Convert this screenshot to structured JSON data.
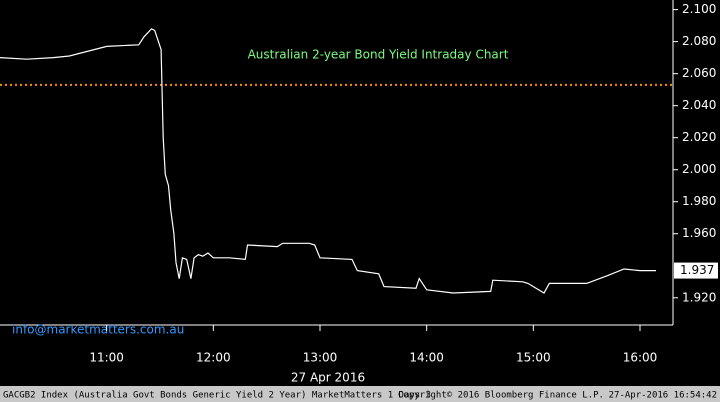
{
  "chart_data": {
    "type": "line",
    "title": "Australian 2-year Bond Yield Intraday Chart",
    "annotation": "info@marketmatters.com.au",
    "xlabel": "27 Apr 2016",
    "footer_left": "GACGB2 Index (Australia Govt Bonds Generic Yield 2 Year) MarketMatters 1 Days 3",
    "footer_center": "Copyright© 2016 Bloomberg Finance L.P.",
    "footer_right": "27-Apr-2016 16:54:42",
    "x": [
      10.0,
      10.25,
      10.5,
      10.65,
      11.0,
      11.3,
      11.35,
      11.42,
      11.45,
      11.51,
      11.53,
      11.55,
      11.58,
      11.6,
      11.63,
      11.65,
      11.68,
      11.71,
      11.75,
      11.79,
      11.82,
      11.86,
      11.9,
      11.95,
      12.0,
      12.15,
      12.3,
      12.32,
      12.6,
      12.65,
      12.9,
      12.95,
      13.0,
      13.3,
      13.35,
      13.55,
      13.6,
      13.9,
      13.93,
      14.0,
      14.25,
      14.6,
      14.62,
      14.9,
      14.95,
      15.1,
      15.15,
      15.5,
      15.7,
      15.85,
      16.0,
      16.15
    ],
    "values": [
      2.07,
      2.069,
      2.07,
      2.071,
      2.077,
      2.078,
      2.083,
      2.088,
      2.087,
      2.075,
      2.02,
      1.997,
      1.99,
      1.975,
      1.96,
      1.942,
      1.932,
      1.945,
      1.944,
      1.932,
      1.945,
      1.947,
      1.946,
      1.948,
      1.945,
      1.945,
      1.944,
      1.953,
      1.952,
      1.954,
      1.954,
      1.953,
      1.945,
      1.944,
      1.937,
      1.935,
      1.927,
      1.926,
      1.932,
      1.925,
      1.923,
      1.924,
      1.931,
      1.93,
      1.929,
      1.923,
      1.929,
      1.929,
      1.934,
      1.938,
      1.937,
      1.937
    ],
    "color": "#ffffff",
    "last_value_label": "1.937",
    "reference_line": 2.053,
    "reference_color": "#ff8c00",
    "xlim": [
      10.0,
      16.3
    ],
    "xticks": [
      {
        "value": 11,
        "label": "11:00"
      },
      {
        "value": 12,
        "label": "12:00"
      },
      {
        "value": 13,
        "label": "13:00"
      },
      {
        "value": 14,
        "label": "14:00"
      },
      {
        "value": 15,
        "label": "15:00"
      },
      {
        "value": 16,
        "label": "16:00"
      }
    ],
    "ylim": [
      1.903,
      2.106
    ],
    "yticks": [
      {
        "value": 1.92,
        "label": "1.920"
      },
      {
        "value": 1.96,
        "label": "1.960"
      },
      {
        "value": 1.98,
        "label": "1.980"
      },
      {
        "value": 2.0,
        "label": "2.000"
      },
      {
        "value": 2.02,
        "label": "2.020"
      },
      {
        "value": 2.04,
        "label": "2.040"
      },
      {
        "value": 2.06,
        "label": "2.060"
      },
      {
        "value": 2.08,
        "label": "2.080"
      },
      {
        "value": 2.1,
        "label": "2.100"
      }
    ],
    "grid": false
  }
}
